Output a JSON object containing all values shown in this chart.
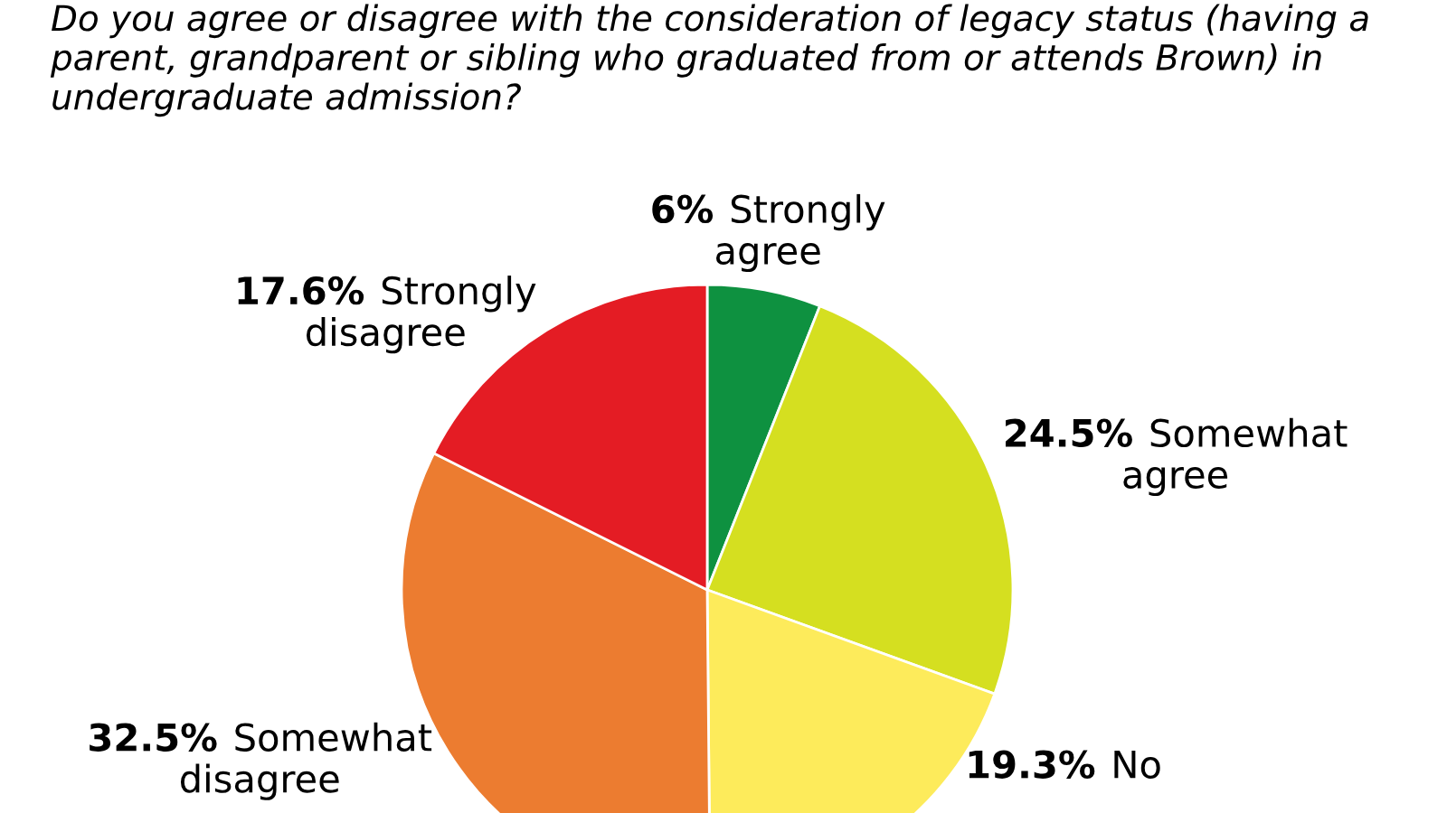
{
  "chart_data": {
    "type": "pie",
    "title": "Do you agree or disagree with the consideration of legacy status (having a parent, grandparent or sibling who graduated from or attends Brown) in undergraduate admission?",
    "categories": [
      "Strongly agree",
      "Somewhat agree",
      "No",
      "Somewhat disagree",
      "Strongly disagree"
    ],
    "values": [
      6,
      24.5,
      19.3,
      32.5,
      17.6
    ],
    "colors": [
      "#0e9140",
      "#d5df20",
      "#fdeb5b",
      "#ec7c30",
      "#e41c24"
    ],
    "value_labels": [
      "6%",
      "24.5%",
      "19.3%",
      "32.5%",
      "17.6%"
    ]
  }
}
